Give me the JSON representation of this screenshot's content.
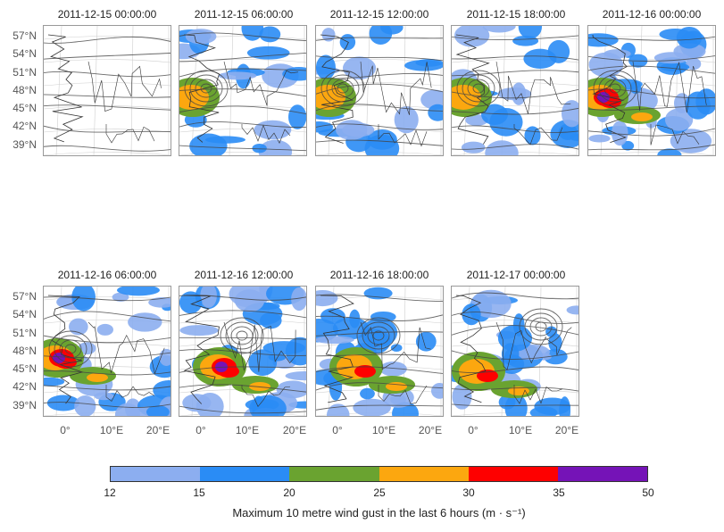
{
  "panels": [
    {
      "title": "2011-12-15 00:00:00",
      "intensity": 0,
      "storm_center": "none"
    },
    {
      "title": "2011-12-15 06:00:00",
      "intensity": 1,
      "storm_center": "west"
    },
    {
      "title": "2011-12-15 12:00:00",
      "intensity": 1,
      "storm_center": "west"
    },
    {
      "title": "2011-12-15 18:00:00",
      "intensity": 1,
      "storm_center": "west"
    },
    {
      "title": "2011-12-16 00:00:00",
      "intensity": 3,
      "storm_center": "west"
    },
    {
      "title": "2011-12-16 06:00:00",
      "intensity": 3,
      "storm_center": "west"
    },
    {
      "title": "2011-12-16 12:00:00",
      "intensity": 3,
      "storm_center": "central"
    },
    {
      "title": "2011-12-16 18:00:00",
      "intensity": 2,
      "storm_center": "central"
    },
    {
      "title": "2011-12-17 00:00:00",
      "intensity": 2,
      "storm_center": "east"
    }
  ],
  "lat_labels": [
    "57°N",
    "54°N",
    "51°N",
    "48°N",
    "45°N",
    "42°N",
    "39°N"
  ],
  "lon_labels": [
    "0°",
    "10°E",
    "20°E"
  ],
  "colorbar": {
    "ticks": [
      "12",
      "15",
      "20",
      "25",
      "30",
      "35",
      "50"
    ],
    "colors": [
      "#8caef0",
      "#2a8cf5",
      "#6aa330",
      "#fca70f",
      "#fe0000",
      "#7513b7"
    ],
    "label": "Maximum 10 metre wind gust in the last 6 hours (m · s⁻¹)"
  }
}
